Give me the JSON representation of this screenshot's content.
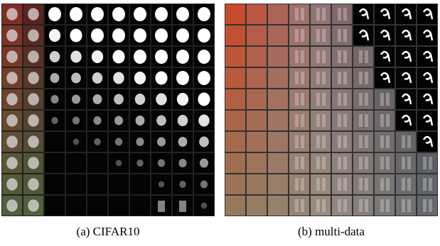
{
  "figure": {
    "panels": [
      {
        "caption": "(a) CIFAR10"
      },
      {
        "caption": "(b) multi-data"
      }
    ]
  }
}
